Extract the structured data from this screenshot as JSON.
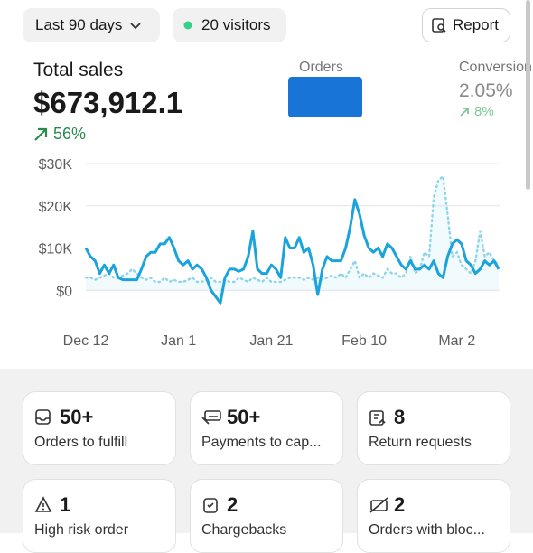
{
  "filters": {
    "range": "Last 90 days",
    "visitors": "20 visitors",
    "report": "Report"
  },
  "kpis": [
    {
      "label": "Total sales",
      "value": "$673,912.1",
      "change": "56%"
    },
    {
      "label": "Orders"
    },
    {
      "label": "Conversion",
      "value": "2.05%",
      "change": "8%"
    }
  ],
  "cards": [
    {
      "value": "50+",
      "label": "Orders to fulfill"
    },
    {
      "value": "50+",
      "label": "Payments to cap..."
    },
    {
      "value": "8",
      "label": "Return requests"
    },
    {
      "value": "1",
      "label": "High risk order"
    },
    {
      "value": "2",
      "label": "Chargebacks"
    },
    {
      "value": "2",
      "label": "Orders with bloc..."
    }
  ],
  "chart_data": {
    "type": "line",
    "categories": [
      "Dec 12",
      null,
      null,
      null,
      null,
      null,
      null,
      null,
      null,
      null,
      null,
      null,
      null,
      null,
      null,
      null,
      null,
      null,
      null,
      null,
      "Jan 1",
      null,
      null,
      null,
      null,
      null,
      null,
      null,
      null,
      null,
      null,
      null,
      null,
      null,
      null,
      null,
      null,
      null,
      null,
      null,
      "Jan 21",
      null,
      null,
      null,
      null,
      null,
      null,
      null,
      null,
      null,
      null,
      null,
      null,
      null,
      null,
      null,
      null,
      null,
      null,
      null,
      "Feb 10",
      null,
      null,
      null,
      null,
      null,
      null,
      null,
      null,
      null,
      null,
      null,
      null,
      null,
      null,
      null,
      null,
      null,
      null,
      null,
      "Mar 2",
      null,
      null,
      null,
      null,
      null,
      null,
      null,
      null,
      null
    ],
    "series": [
      {
        "color": "#1aa3dc",
        "style": "solid",
        "values": [
          10000,
          8000,
          7000,
          4000,
          6000,
          4000,
          6000,
          3000,
          2500,
          2500,
          2500,
          2500,
          5000,
          8000,
          9000,
          9000,
          11000,
          11000,
          12500,
          10000,
          7000,
          6000,
          7000,
          5000,
          6000,
          5000,
          3000,
          0,
          -1500,
          -3000,
          3000,
          5000,
          5000,
          4500,
          5000,
          8000,
          14000,
          5000,
          4000,
          4000,
          6000,
          5000,
          3000,
          12500,
          10000,
          10000,
          12500,
          9000,
          10000,
          6000,
          -1000,
          5000,
          8000,
          7000,
          7000,
          7000,
          10000,
          15000,
          21500,
          18000,
          13000,
          10000,
          9000,
          10000,
          8000,
          11000,
          10000,
          8000,
          6000,
          5000,
          7000,
          5000,
          5000,
          6000,
          5000,
          7000,
          4000,
          3000,
          8000,
          11000,
          12000,
          11000,
          7000,
          6000,
          4000,
          5000,
          7000,
          6000,
          7000,
          5000
        ]
      },
      {
        "color": "#8fd4ea",
        "style": "dotted",
        "values": [
          3000,
          3000,
          2500,
          3000,
          3500,
          4000,
          3000,
          3000,
          3500,
          4000,
          5000,
          4000,
          3000,
          2500,
          3000,
          2000,
          2000,
          3000,
          2000,
          2500,
          2000,
          2000,
          2500,
          3000,
          2000,
          2000,
          2500,
          3000,
          2000,
          2000,
          2500,
          2000,
          2000,
          3000,
          2500,
          2000,
          3000,
          2500,
          2000,
          3000,
          2000,
          2000,
          2000,
          2500,
          3000,
          3000,
          3000,
          2500,
          3000,
          2500,
          3000,
          2500,
          3000,
          3500,
          3000,
          4000,
          3000,
          5000,
          7000,
          3000,
          4000,
          3000,
          4000,
          3500,
          3000,
          5000,
          4000,
          4000,
          3000,
          4000,
          8000,
          4000,
          5000,
          9000,
          8000,
          22000,
          26000,
          27000,
          18000,
          8000,
          9000,
          6000,
          5000,
          4000,
          7000,
          14000,
          8000,
          9000,
          7000,
          6000
        ]
      }
    ],
    "ylim": [
      -4000,
      30000
    ],
    "yticks": [
      {
        "value": 0,
        "label": "$0"
      },
      {
        "value": 10000,
        "label": "$10K"
      },
      {
        "value": 20000,
        "label": "$20K"
      },
      {
        "value": 30000,
        "label": "$30K"
      }
    ],
    "grid": true
  }
}
